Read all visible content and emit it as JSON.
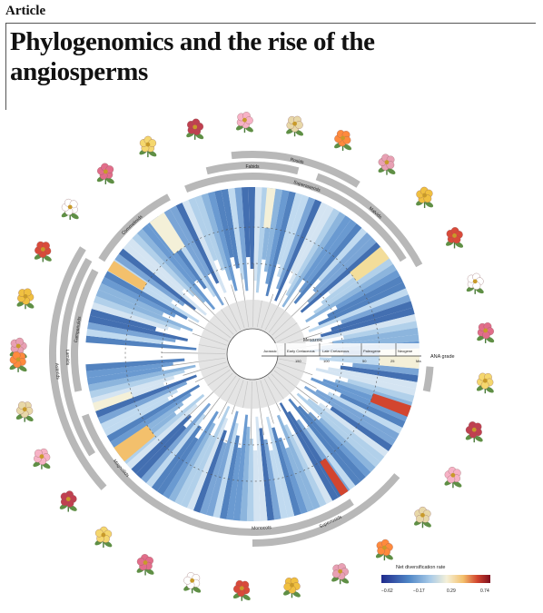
{
  "section": "Article",
  "title": "Phylogenomics and the rise of the angiosperms",
  "figure": {
    "clade_labels": [
      "Lamiids",
      "Fabids",
      "Malvids",
      "Rosids",
      "Asterids",
      "Campanulids",
      "Superasterids",
      "Superrosids",
      "Monocots",
      "Commelinids",
      "Magnoliids",
      "ANA grade"
    ],
    "timescale": {
      "era": "Mesozoic",
      "periods": [
        "Jurassic",
        "Early Cretaceous",
        "Late Cretaceous",
        "Paleogene",
        "Neogene"
      ],
      "ticks": [
        "150",
        "100",
        "50",
        "25",
        "Ma"
      ]
    },
    "legend": {
      "title": "Net diversification rate",
      "ticks": [
        "−0.62",
        "−0.17",
        "0.29",
        "0.74"
      ],
      "colors": [
        "#1f2a8c",
        "#4f86c6",
        "#a9cbe8",
        "#f4f0d8",
        "#f3c06c",
        "#d2452f",
        "#7d0f1e"
      ]
    }
  }
}
